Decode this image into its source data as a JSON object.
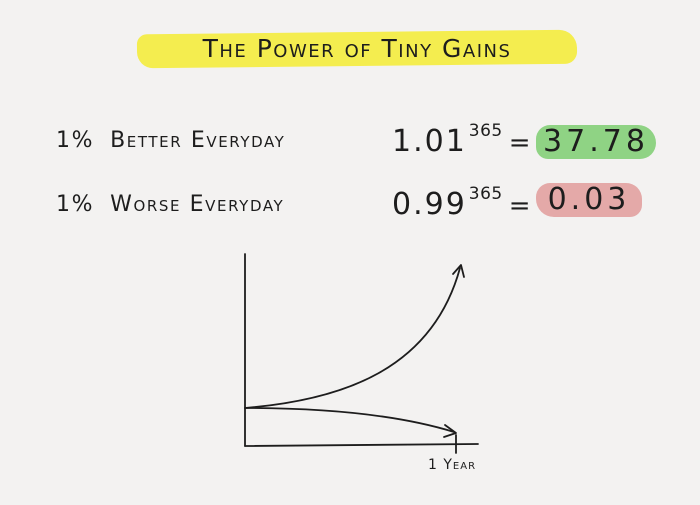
{
  "title": "The Power of Tiny Gains",
  "rows": {
    "better": {
      "pct": "1%",
      "label": "Better Everyday",
      "base": "1.01",
      "exponent": "365",
      "equals": "=",
      "result": "37.78",
      "highlight_color": "#8fd384"
    },
    "worse": {
      "pct": "1%",
      "label": "Worse Everyday",
      "base": "0.99",
      "exponent": "365",
      "equals": "=",
      "result": "0.03",
      "highlight_color": "#e4a9a8"
    }
  },
  "graph": {
    "x_label": "1 Year",
    "curves": [
      {
        "label": "better",
        "trend": "exponential growth",
        "icon": "arrow-up-right-icon"
      },
      {
        "label": "worse",
        "trend": "gradual decline",
        "icon": "arrow-right-icon"
      }
    ]
  },
  "colors": {
    "title_highlight": "#f4ed4f",
    "background": "#f3f2f1",
    "ink": "#1d1d1d"
  }
}
